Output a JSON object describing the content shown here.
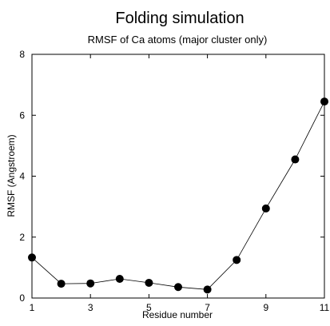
{
  "chart_data": {
    "type": "line",
    "title": "Folding simulation",
    "subtitle": "RMSF of Ca atoms (major cluster only)",
    "xlabel": "Residue number",
    "ylabel": "RMSF (Angstroem)",
    "xlim": [
      1,
      11
    ],
    "ylim": [
      0,
      8
    ],
    "xticks": [
      "1",
      "3",
      "5",
      "7",
      "9",
      "11"
    ],
    "yticks": [
      "0",
      "2",
      "4",
      "6",
      "8"
    ],
    "grid": false,
    "legend": "none",
    "marker": "filled-circle",
    "line_color": "#000000",
    "series": [
      {
        "x": [
          1,
          2,
          3,
          4,
          5,
          6,
          7,
          8,
          9,
          10,
          11
        ],
        "y": [
          1.33,
          0.47,
          0.48,
          0.63,
          0.5,
          0.36,
          0.28,
          1.25,
          2.94,
          4.55,
          6.45
        ]
      }
    ]
  }
}
